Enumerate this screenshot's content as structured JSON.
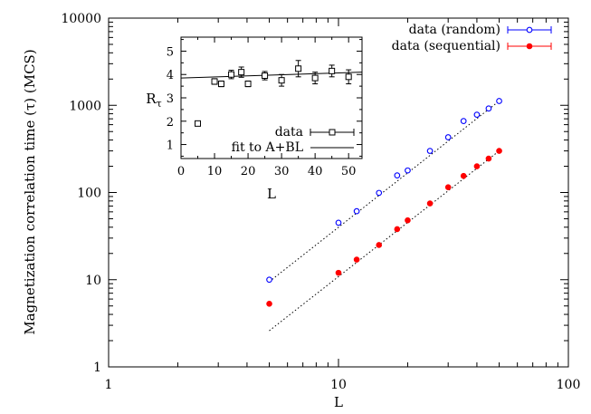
{
  "chart_data": [
    {
      "type": "scatter",
      "xlabel": "L",
      "ylabel": "Magnetization correlation time (τ) (MCS)",
      "xscale": "log",
      "yscale": "log",
      "xlim": [
        1,
        100
      ],
      "ylim": [
        1,
        10000
      ],
      "x_ticks": [
        1,
        10,
        100
      ],
      "x_tick_labels": [
        "1",
        "10",
        "100"
      ],
      "y_ticks": [
        1,
        10,
        100,
        1000,
        10000
      ],
      "y_tick_labels": [
        "1",
        "10",
        "100",
        "1000",
        "10000"
      ],
      "grid": false,
      "legend_position": "top-right",
      "series": [
        {
          "name": "data (random)",
          "marker": "open-circle",
          "color": "#0000ff",
          "x": [
            5,
            10,
            12,
            15,
            18,
            20,
            25,
            30,
            35,
            40,
            45,
            50
          ],
          "y": [
            10,
            45,
            61,
            99,
            157,
            179,
            300,
            430,
            660,
            780,
            920,
            1120
          ]
        },
        {
          "name": "data (sequential)",
          "marker": "filled-circle",
          "color": "#ff0000",
          "x": [
            5,
            10,
            12,
            15,
            18,
            20,
            25,
            30,
            35,
            40,
            45,
            50
          ],
          "y": [
            5.3,
            12,
            17,
            25,
            38,
            48,
            75,
            115,
            155,
            200,
            245,
            300
          ]
        }
      ],
      "fit_lines": [
        {
          "style": "dotted",
          "x": [
            5,
            50
          ],
          "y": [
            9.5,
            1120
          ]
        },
        {
          "style": "dotted",
          "x": [
            5,
            50
          ],
          "y": [
            2.6,
            300
          ]
        }
      ]
    },
    {
      "type": "scatter",
      "xlabel": "L",
      "ylabel": "Rτ",
      "xlim": [
        0,
        54
      ],
      "ylim": [
        0.4,
        5.6
      ],
      "x_ticks": [
        0,
        10,
        20,
        30,
        40,
        50
      ],
      "x_tick_labels": [
        "0",
        "10",
        "20",
        "30",
        "40",
        "50"
      ],
      "y_ticks": [
        1,
        2,
        3,
        4,
        5
      ],
      "y_tick_labels": [
        "1",
        "2",
        "3",
        "4",
        "5"
      ],
      "legend_position": "bottom-right",
      "series": [
        {
          "name": "data",
          "marker": "open-square",
          "color": "#000000",
          "x": [
            5,
            10,
            12,
            15,
            18,
            20,
            25,
            30,
            35,
            40,
            45,
            50
          ],
          "y": [
            1.9,
            3.7,
            3.6,
            4.0,
            4.1,
            3.6,
            3.95,
            3.75,
            4.25,
            3.85,
            4.15,
            3.9
          ],
          "err": [
            0.05,
            0.12,
            0.12,
            0.18,
            0.22,
            0.12,
            0.18,
            0.25,
            0.35,
            0.25,
            0.25,
            0.3
          ]
        },
        {
          "name": "fit to A+BL",
          "marker": "line",
          "color": "#000000",
          "x": [
            0,
            54
          ],
          "y": [
            3.85,
            4.1
          ]
        }
      ]
    }
  ]
}
